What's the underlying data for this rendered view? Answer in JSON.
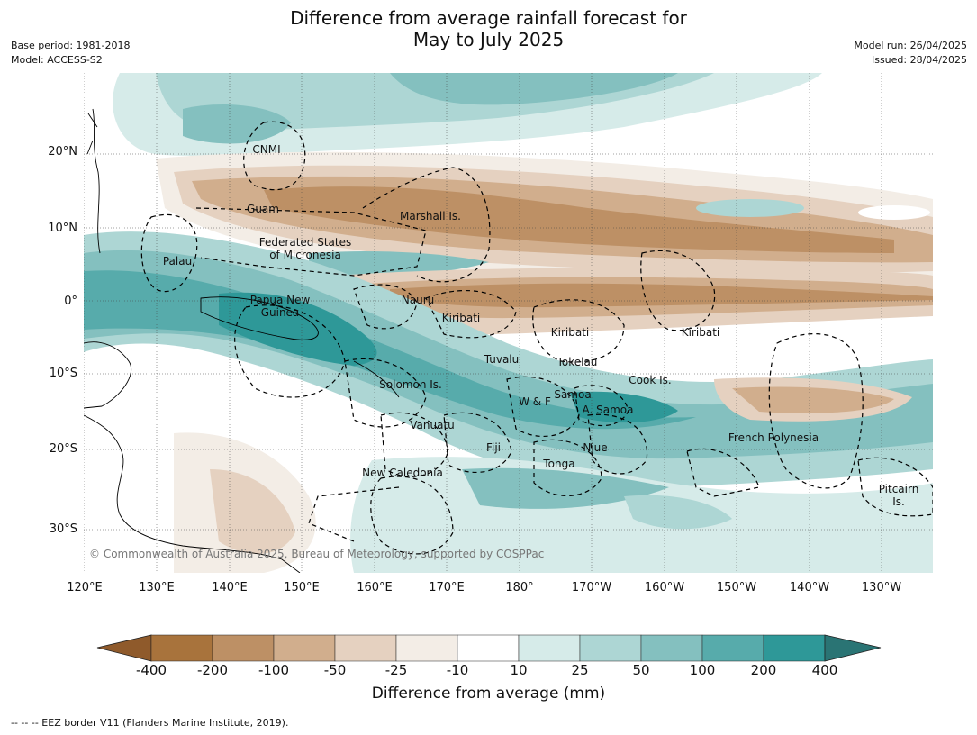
{
  "title_line1": "Difference from average rainfall forecast for",
  "title_line2": "May to July 2025",
  "meta": {
    "base_period": "Base period: 1981-2018",
    "model": "Model: ACCESS-S2",
    "model_run": "Model run: 26/04/2025",
    "issued": "Issued: 28/04/2025"
  },
  "lon_ticks": [
    "120°E",
    "130°E",
    "140°E",
    "150°E",
    "160°E",
    "170°E",
    "180°",
    "170°W",
    "160°W",
    "150°W",
    "140°W",
    "130°W"
  ],
  "lat_ticks": [
    "20°N",
    "10°N",
    "0°",
    "10°S",
    "20°S",
    "30°S"
  ],
  "places": {
    "cnmi": "CNMI",
    "guam": "Guam",
    "marshall": "Marshall Is.",
    "fsm": [
      "Federated States",
      "of Micronesia"
    ],
    "palau": "Palau",
    "png": [
      "Papua New",
      "Guinea"
    ],
    "nauru": "Nauru",
    "kiribati1": "Kiribati",
    "kiribati2": "Kiribati",
    "kiribati3": "Kiribati",
    "tuvalu": "Tuvalu",
    "tokelau": "Tokelau",
    "cook": "Cook Is.",
    "solomon": "Solomon Is.",
    "wf": "W & F",
    "samoa": "Samoa",
    "asamoa": "A. Samoa",
    "vanuatu": "Vanuatu",
    "fiji": "Fiji",
    "niue": "Niue",
    "tonga": "Tonga",
    "newcal": "New Caledonia",
    "frpoly": "French Polynesia",
    "pitcairn": [
      "Pitcairn",
      "Is."
    ]
  },
  "copyright": "© Commonwealth of Australia 2025, Bureau of Meteorology, supported by COSPPac",
  "colorbar": {
    "title": "Difference from average (mm)",
    "labels": [
      "-400",
      "-200",
      "-100",
      "-50",
      "-25",
      "-10",
      "10",
      "25",
      "50",
      "100",
      "200",
      "400"
    ],
    "colors": {
      "under": "#8f5a2b",
      "bins": [
        "#a8733c",
        "#bd9065",
        "#d1ae8d",
        "#e5d1c0",
        "#f3ede6",
        "#ffffff",
        "#d6ebe9",
        "#add6d4",
        "#84c0bf",
        "#57abab",
        "#2e9898"
      ],
      "over": "#2a7474"
    }
  },
  "footnote": "--  --  -- EEZ border V11 (Flanders Marine Institute, 2019)."
}
